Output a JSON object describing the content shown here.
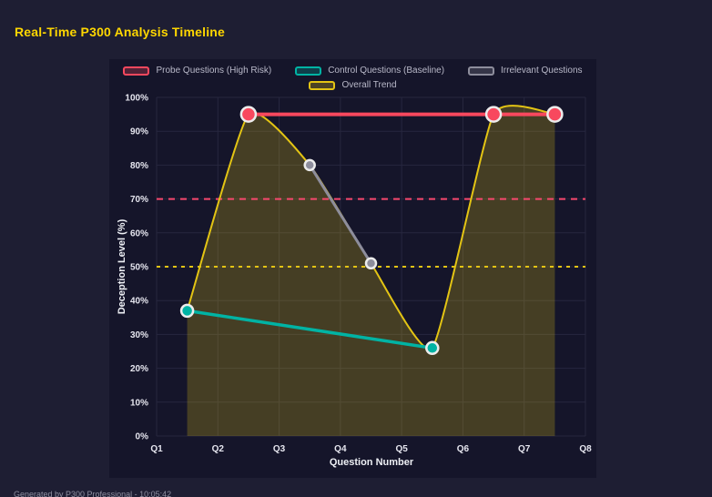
{
  "page": {
    "title": "Real-Time P300 Analysis Timeline",
    "footer": "Generated by P300 Professional - 10:05:42"
  },
  "colors": {
    "background": "#1e1e33",
    "panel": "#15152a",
    "title": "#ffd700",
    "grid": "#27273f",
    "tick_text": "#e6e6ef",
    "axis_text": "#eef0f5",
    "legend_text": "#b9b9c9",
    "footer_text": "#8f8fa0",
    "point_stroke": "#ececec"
  },
  "chart_data": {
    "type": "line",
    "title": "Real-Time P300 Analysis Timeline",
    "xlabel": "Question Number",
    "ylabel": "Deception Level (%)",
    "x_tick_labels": [
      "Q1",
      "Q2",
      "Q3",
      "Q4",
      "Q5",
      "Q6",
      "Q7",
      "Q8"
    ],
    "x_tick_values": [
      1,
      2,
      3,
      4,
      5,
      6,
      7,
      8
    ],
    "xlim": [
      1,
      8
    ],
    "y_tick_labels": [
      "0%",
      "10%",
      "20%",
      "30%",
      "40%",
      "50%",
      "60%",
      "70%",
      "80%",
      "90%",
      "100%"
    ],
    "y_tick_values": [
      0,
      10,
      20,
      30,
      40,
      50,
      60,
      70,
      80,
      90,
      100
    ],
    "ylim": [
      0,
      100
    ],
    "grid": true,
    "legend_position": "top",
    "series": [
      {
        "name": "Probe Questions (High Risk)",
        "color": "#f8485e",
        "x": [
          2.5,
          6.5,
          7.5
        ],
        "values": [
          95,
          95,
          95
        ],
        "line_width": 4,
        "point_radius": 8,
        "show_points": true,
        "smooth": false,
        "fill": false
      },
      {
        "name": "Control Questions (Baseline)",
        "color": "#00b3a4",
        "x": [
          1.5,
          5.5
        ],
        "values": [
          37,
          26
        ],
        "line_width": 3.5,
        "point_radius": 6.5,
        "show_points": true,
        "smooth": false,
        "fill": false
      },
      {
        "name": "Irrelevant Questions",
        "color": "#8d8d9c",
        "x": [
          3.5,
          4.5
        ],
        "values": [
          80,
          51
        ],
        "line_width": 3,
        "point_radius": 5.5,
        "show_points": true,
        "smooth": false,
        "fill": false
      },
      {
        "name": "Overall Trend",
        "color": "#e3c414",
        "x": [
          1.5,
          2.5,
          3.5,
          4.5,
          5.5,
          6.5,
          7.5
        ],
        "values": [
          37,
          95,
          80,
          51,
          26,
          95,
          95
        ],
        "line_width": 2,
        "point_radius": 0,
        "show_points": false,
        "smooth": true,
        "fill": true,
        "fill_color": "rgba(227,196,20,0.24)"
      }
    ],
    "reference_lines": [
      {
        "value": 70,
        "color": "#f8486e",
        "dash": [
          7,
          6
        ],
        "width": 2
      },
      {
        "value": 50,
        "color": "#e3c414",
        "dash": [
          4,
          5
        ],
        "width": 2
      }
    ],
    "legend_rows": [
      [
        {
          "label": "Probe Questions (High Risk)",
          "color": "#f8485e"
        },
        {
          "label": "Control Questions (Baseline)",
          "color": "#00b3a4"
        },
        {
          "label": "Irrelevant Questions",
          "color": "#8d8d9c"
        }
      ],
      [
        {
          "label": "Overall Trend",
          "color": "#e3c414"
        }
      ]
    ]
  }
}
